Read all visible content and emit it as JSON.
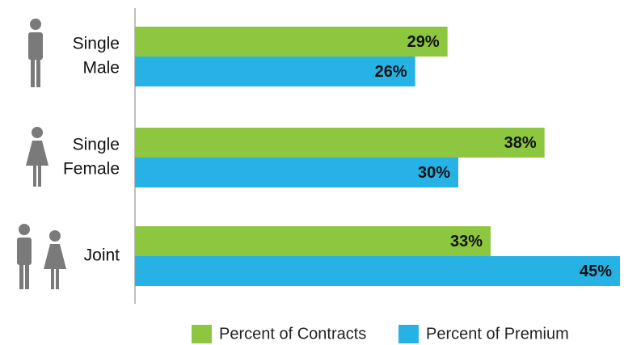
{
  "chart_data": {
    "type": "bar",
    "orientation": "horizontal",
    "categories": [
      [
        "Single",
        "Male"
      ],
      [
        "Single",
        "Female"
      ],
      [
        "Joint"
      ]
    ],
    "series": [
      {
        "name": "Percent of Contracts",
        "color": "#8dc63f",
        "values": [
          29,
          38,
          33
        ],
        "value_labels": [
          "29%",
          "38%",
          "33%"
        ]
      },
      {
        "name": "Percent of Premium",
        "color": "#27b2e6",
        "values": [
          26,
          30,
          45
        ],
        "value_labels": [
          "26%",
          "30%",
          "45%"
        ]
      }
    ],
    "xlim": [
      0,
      45
    ],
    "legend": "bottom"
  }
}
